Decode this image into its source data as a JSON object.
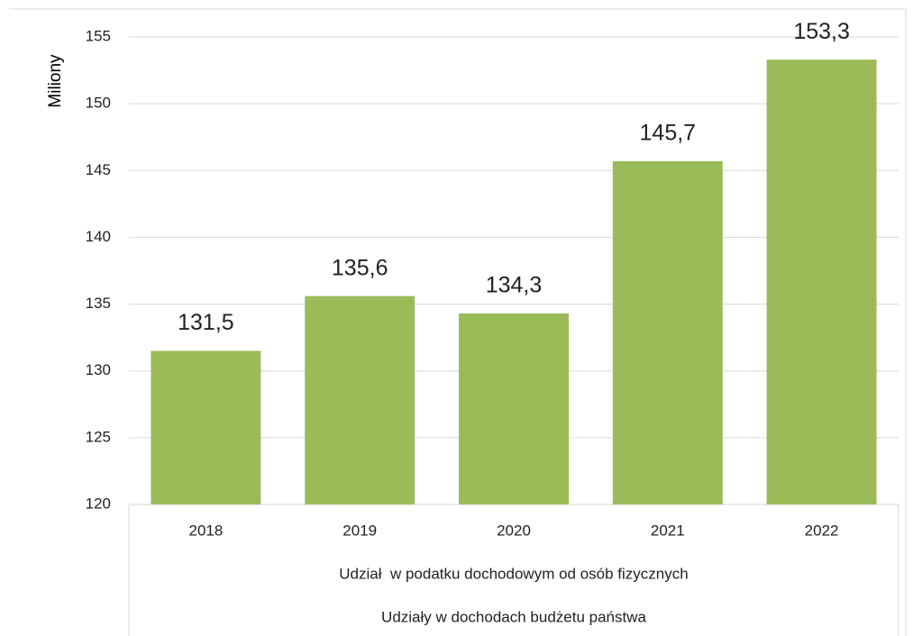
{
  "chart_data": {
    "type": "bar",
    "y_label": "Miliony",
    "categories": [
      "2018",
      "2019",
      "2020",
      "2021",
      "2022"
    ],
    "values": [
      131.5,
      135.6,
      134.3,
      145.7,
      153.3
    ],
    "value_labels": [
      "131,5",
      "135,6",
      "134,3",
      "145,7",
      "153,3"
    ],
    "category_groups": [
      "Udział  w podatku dochodowym od osób fizycznych",
      "Udziały w dochodach budżetu państwa"
    ],
    "color": "#9bbb59",
    "ylim": [
      120,
      155
    ],
    "yticks": [
      120,
      125,
      130,
      135,
      140,
      145,
      150,
      155
    ],
    "grid": true
  }
}
